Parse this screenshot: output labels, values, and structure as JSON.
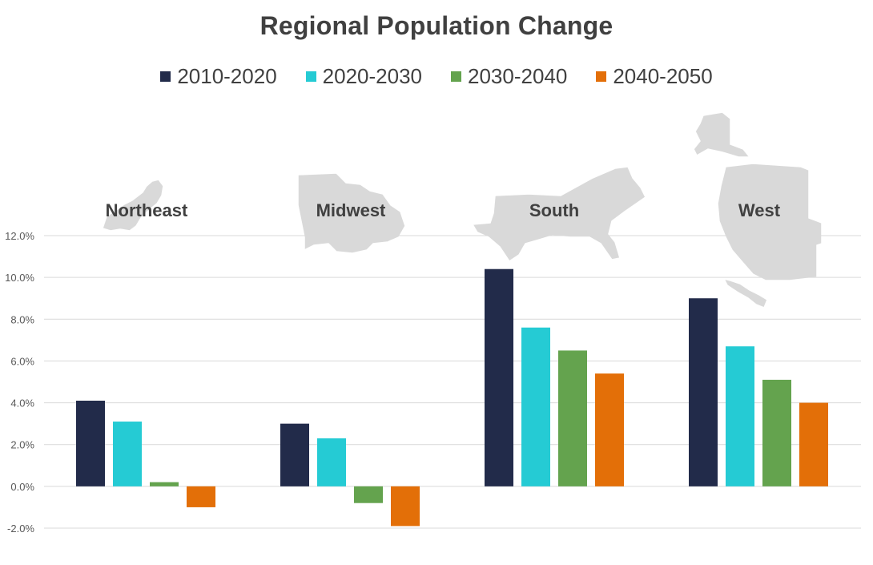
{
  "chart_data": {
    "type": "bar",
    "title": "Regional Population Change",
    "categories": [
      "Northeast",
      "Midwest",
      "South",
      "West"
    ],
    "series": [
      {
        "name": "2010-2020",
        "color": "#222b4a",
        "values": [
          4.1,
          3.0,
          10.4,
          9.0
        ]
      },
      {
        "name": "2020-2030",
        "color": "#25cbd4",
        "values": [
          3.1,
          2.3,
          7.6,
          6.7
        ]
      },
      {
        "name": "2030-2040",
        "color": "#64a34e",
        "values": [
          0.2,
          -0.8,
          6.5,
          5.1
        ]
      },
      {
        "name": "2040-2050",
        "color": "#e36f08",
        "values": [
          -1.0,
          -1.9,
          5.4,
          4.0
        ]
      }
    ],
    "y_ticks": [
      "12.0%",
      "10.0%",
      "8.0%",
      "6.0%",
      "4.0%",
      "2.0%",
      "0.0%",
      "-2.0%"
    ],
    "y_tick_values": [
      12,
      10,
      8,
      6,
      4,
      2,
      0,
      -2
    ],
    "ylim": [
      -2,
      12
    ],
    "grid": true,
    "legend_position": "top-center",
    "xlabel": "",
    "ylabel": "",
    "map_icons": [
      "northeast-map-icon",
      "midwest-map-icon",
      "south-map-icon",
      "west-map-icon"
    ]
  }
}
